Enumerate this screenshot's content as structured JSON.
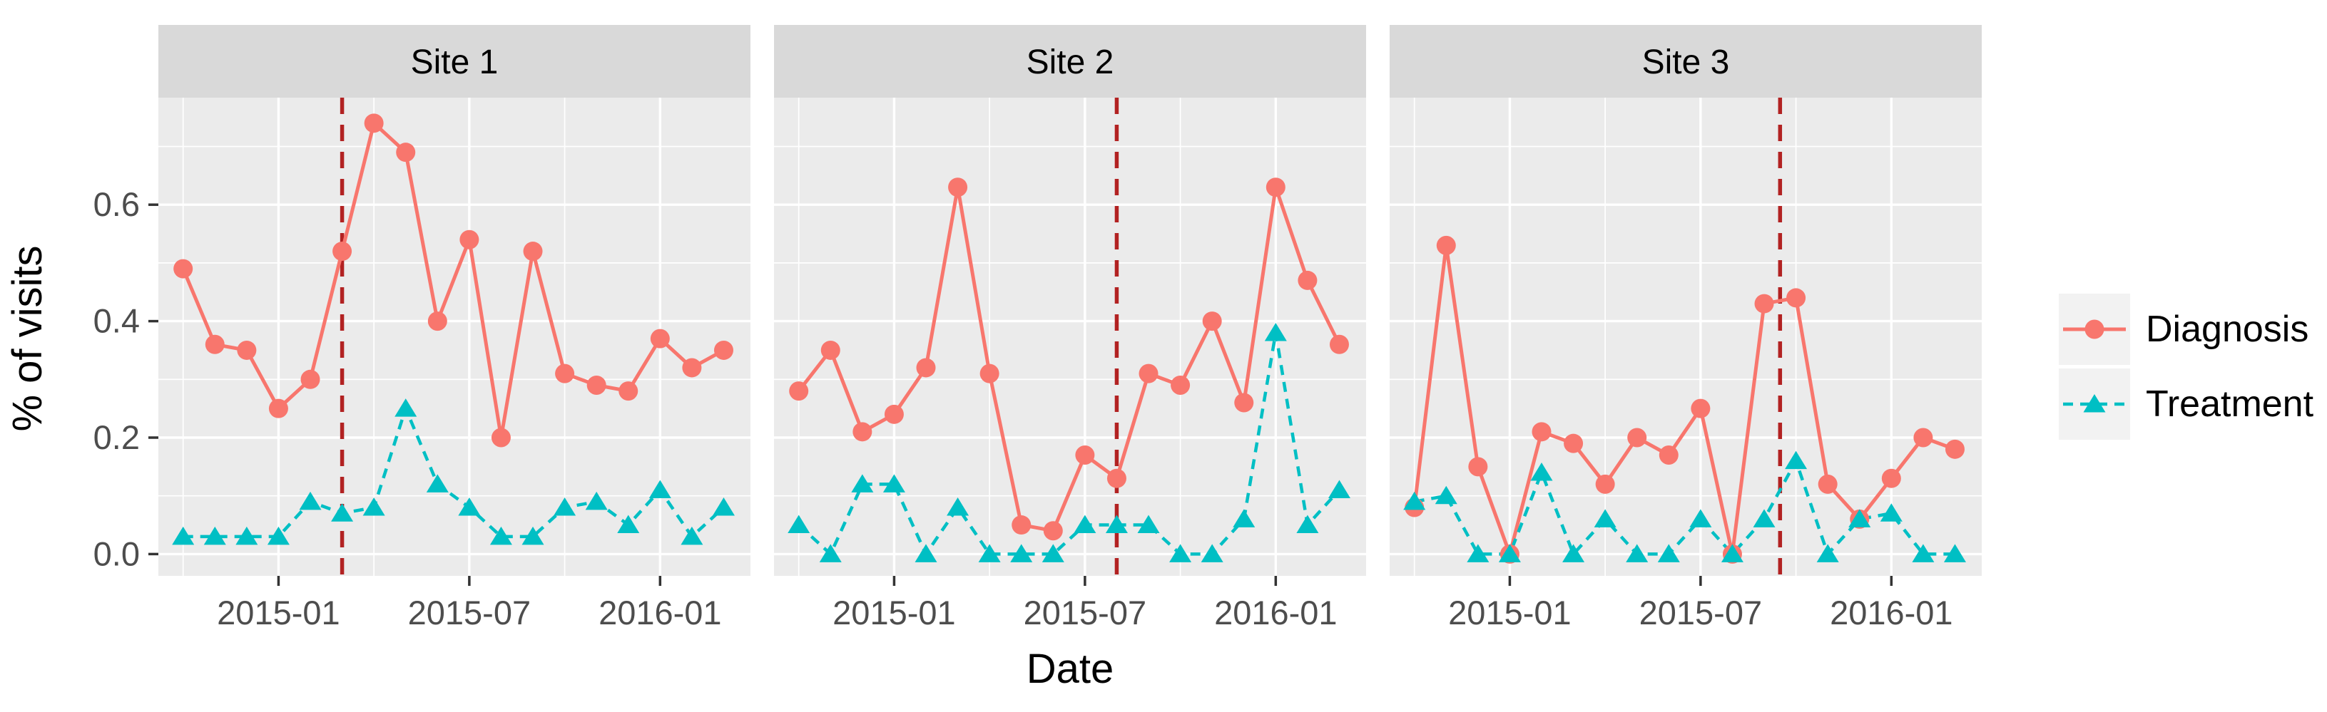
{
  "chart_data": {
    "type": "line",
    "title": "",
    "xlabel": "Date",
    "ylabel": "% of visits",
    "facet_labels": [
      "Site 1",
      "Site 2",
      "Site 3"
    ],
    "x": [
      "2014-10",
      "2014-11",
      "2014-12",
      "2015-01",
      "2015-02",
      "2015-03",
      "2015-04",
      "2015-05",
      "2015-06",
      "2015-07",
      "2015-08",
      "2015-09",
      "2015-10",
      "2015-11",
      "2015-12",
      "2016-01",
      "2016-02",
      "2016-03"
    ],
    "xtick_labels": [
      "2015-01",
      "2015-07",
      "2016-01"
    ],
    "xtick_month_indices": [
      3,
      9,
      15
    ],
    "xminor_month_indices": [
      0,
      6,
      12
    ],
    "ytick_labels": [
      "0.0",
      "0.2",
      "0.4",
      "0.6"
    ],
    "ytick_values": [
      0.0,
      0.2,
      0.4,
      0.6
    ],
    "yminor_values": [
      0.1,
      0.3,
      0.5,
      0.7
    ],
    "ylim": [
      -0.038,
      0.787
    ],
    "grid": true,
    "legend_position": "right",
    "legend_labels": [
      "Diagnosis",
      "Treatment"
    ],
    "series": [
      {
        "name": "Diagnosis",
        "facet": "Site 1",
        "values": [
          0.49,
          0.36,
          0.35,
          0.25,
          0.3,
          0.52,
          0.74,
          0.69,
          0.4,
          0.54,
          0.2,
          0.52,
          0.31,
          0.29,
          0.28,
          0.37,
          0.32,
          0.35
        ]
      },
      {
        "name": "Treatment",
        "facet": "Site 1",
        "values": [
          0.03,
          0.03,
          0.03,
          0.03,
          0.09,
          0.07,
          0.08,
          0.25,
          0.12,
          0.08,
          0.03,
          0.03,
          0.08,
          0.09,
          0.05,
          0.11,
          0.03,
          0.08
        ]
      },
      {
        "name": "Diagnosis",
        "facet": "Site 2",
        "values": [
          0.28,
          0.35,
          0.21,
          0.24,
          0.32,
          0.63,
          0.31,
          0.05,
          0.04,
          0.17,
          0.13,
          0.31,
          0.29,
          0.4,
          0.26,
          0.63,
          0.47,
          0.36
        ]
      },
      {
        "name": "Treatment",
        "facet": "Site 2",
        "values": [
          0.05,
          0.0,
          0.12,
          0.12,
          0.0,
          0.08,
          0.0,
          0.0,
          0.0,
          0.05,
          0.05,
          0.05,
          0.0,
          0.0,
          0.06,
          0.38,
          0.05,
          0.11
        ]
      },
      {
        "name": "Diagnosis",
        "facet": "Site 3",
        "values": [
          0.08,
          0.53,
          0.15,
          0.0,
          0.21,
          0.19,
          0.12,
          0.2,
          0.17,
          0.25,
          0.0,
          0.43,
          0.44,
          0.12,
          0.06,
          0.13,
          0.2,
          0.18
        ]
      },
      {
        "name": "Treatment",
        "facet": "Site 3",
        "values": [
          0.09,
          0.1,
          0.0,
          0.0,
          0.14,
          0.0,
          0.06,
          0.0,
          0.0,
          0.06,
          0.0,
          0.06,
          0.16,
          0.0,
          0.06,
          0.07,
          0.0,
          0.0
        ]
      }
    ],
    "vlines": [
      {
        "facet": "Site 1",
        "month_index": 5,
        "at": "2015-03"
      },
      {
        "facet": "Site 2",
        "month_index": 10,
        "at": "2015-08"
      },
      {
        "facet": "Site 3",
        "month_index": 11.5,
        "at": "between 2015-09 and 2015-10"
      }
    ],
    "colors": {
      "diagnosis": "#F8766D",
      "treatment": "#00BFC4",
      "vline": "#B22222",
      "panel_bg": "#EBEBEB",
      "strip_bg": "#D9D9D9",
      "gridline": "#FFFFFF",
      "tick_text": "#4D4D4D",
      "axis_text": "#000000",
      "legend_key_bg": "#F2F2F2"
    }
  }
}
